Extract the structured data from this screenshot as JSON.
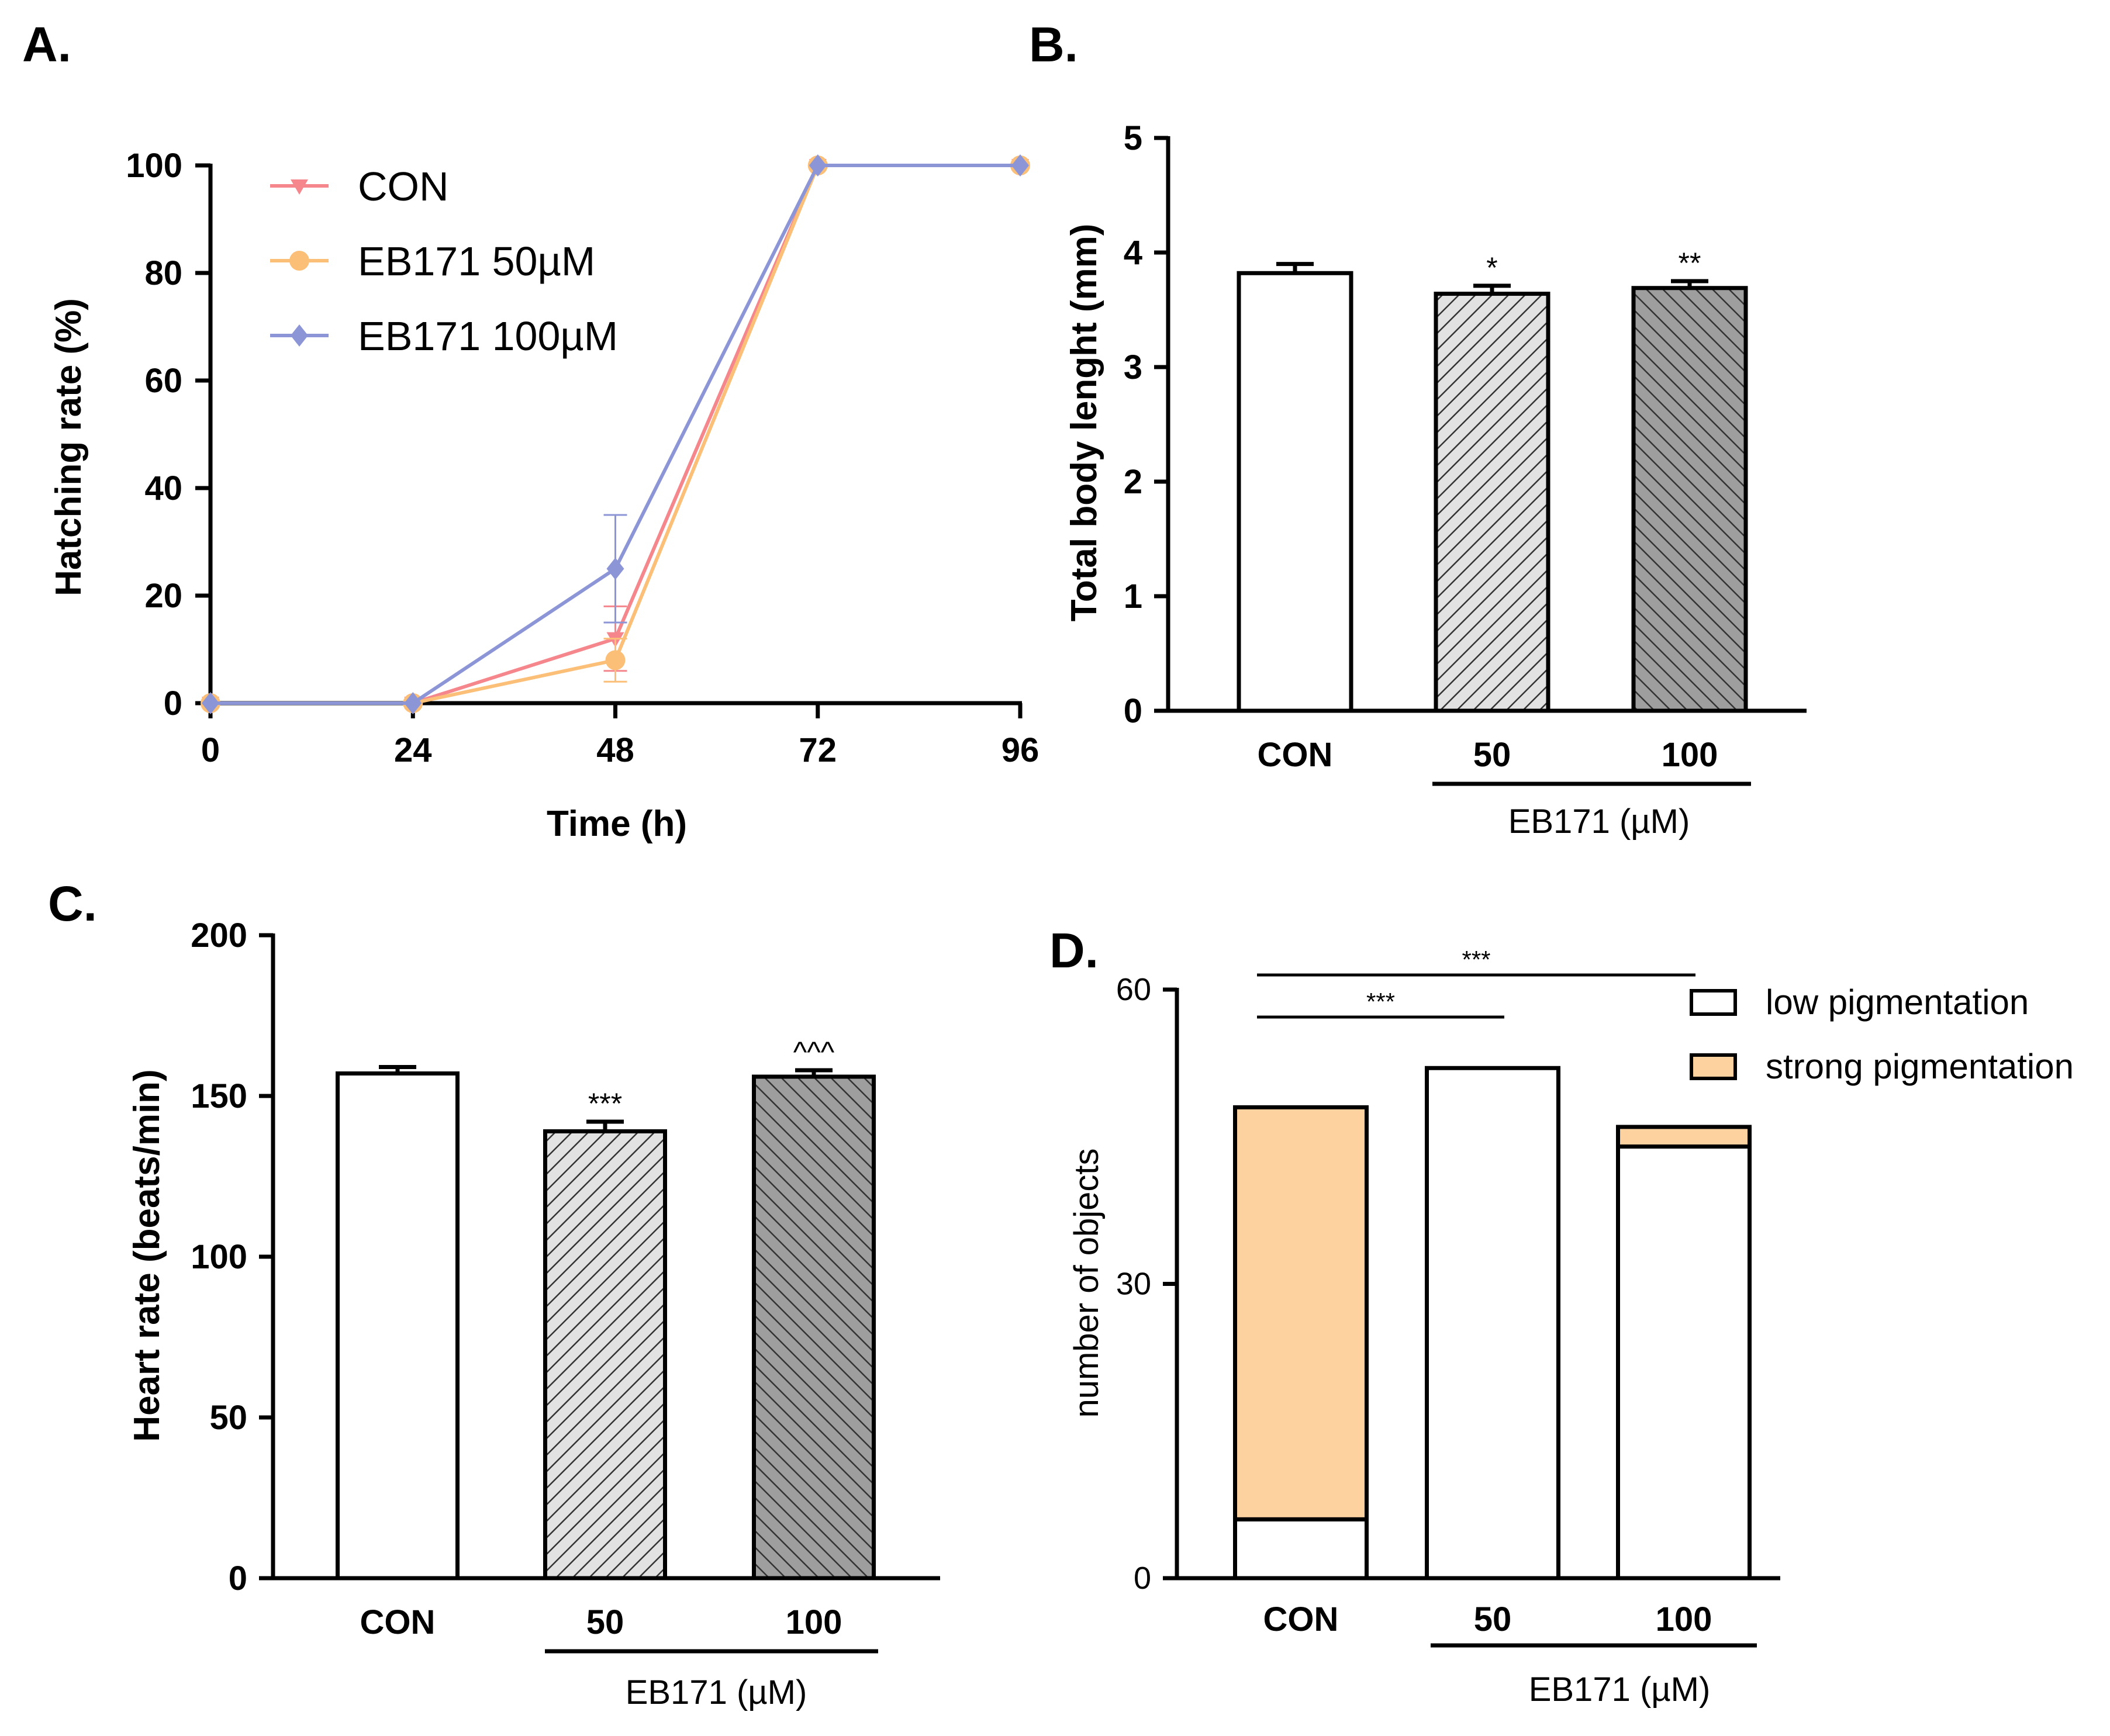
{
  "chart_data": [
    {
      "panel": "A.",
      "type": "line",
      "xlabel": "Time (h)",
      "ylabel": "Hatching rate (%)",
      "x": [
        0,
        24,
        48,
        72,
        96
      ],
      "xticks": [
        "0",
        "24",
        "48",
        "72",
        "96"
      ],
      "yticks": [
        "0",
        "20",
        "40",
        "60",
        "80",
        "100"
      ],
      "xlim": [
        0,
        96
      ],
      "ylim": [
        0,
        100
      ],
      "legend": "top-left",
      "series": [
        {
          "name": "CON",
          "color": "#f4868c",
          "marker": "triangle-down",
          "values": [
            0,
            0,
            12,
            100,
            100
          ],
          "err": [
            0,
            0,
            6,
            0,
            0
          ]
        },
        {
          "name": "EB171 50µM",
          "color": "#fbbf78",
          "marker": "circle",
          "values": [
            0,
            0,
            8,
            100,
            100
          ],
          "err": [
            0,
            0,
            4,
            0,
            0
          ]
        },
        {
          "name": "EB171 100µM",
          "color": "#8c96d6",
          "marker": "diamond",
          "values": [
            0,
            0,
            25,
            100,
            100
          ],
          "err": [
            0,
            0,
            10,
            0,
            0
          ]
        }
      ]
    },
    {
      "panel": "B.",
      "type": "bar",
      "ylabel": "Total body lenght (mm)",
      "categories": [
        "CON",
        "50",
        "100"
      ],
      "values": [
        3.82,
        3.64,
        3.69
      ],
      "err": [
        0.08,
        0.07,
        0.06
      ],
      "significance": [
        "",
        "*",
        "**"
      ],
      "group_label": "EB171 (µM)",
      "yticks": [
        "0",
        "1",
        "2",
        "3",
        "4",
        "5"
      ],
      "ylim": [
        0,
        5
      ]
    },
    {
      "panel": "C.",
      "type": "bar",
      "ylabel": "Heart rate (beats/min)",
      "categories": [
        "CON",
        "50",
        "100"
      ],
      "values": [
        157,
        139,
        156
      ],
      "err": [
        2,
        3,
        2
      ],
      "significance": [
        "",
        "***",
        "^^^"
      ],
      "group_label": "EB171 (µM)",
      "yticks": [
        "0",
        "50",
        "100",
        "150",
        "200"
      ],
      "ylim": [
        0,
        200
      ]
    },
    {
      "panel": "D.",
      "type": "bar",
      "stacked": true,
      "ylabel": "number of objects",
      "categories": [
        "CON",
        "50",
        "100"
      ],
      "series": [
        {
          "name": "low pigmentation",
          "color": "#ffffff",
          "values": [
            6,
            52,
            44
          ]
        },
        {
          "name": "strong pigmentation",
          "color": "#fdd29f",
          "values": [
            42,
            0,
            2
          ]
        }
      ],
      "comparisons": [
        {
          "from": "CON",
          "to": "50",
          "label": "***"
        },
        {
          "from": "CON",
          "to": "100",
          "label": "***"
        }
      ],
      "group_label": "EB171 (µM)",
      "yticks": [
        "0",
        "30",
        "60"
      ],
      "ylim": [
        0,
        60
      ],
      "legend": "top-right"
    }
  ]
}
